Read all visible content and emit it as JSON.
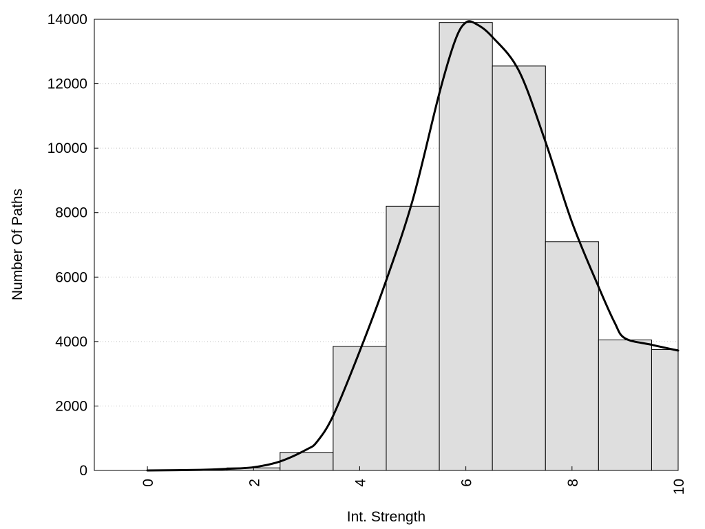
{
  "chart_data": {
    "type": "bar",
    "xlabel": "Int. Strength",
    "ylabel": "Number Of Paths",
    "xlim": [
      -1,
      10
    ],
    "ylim": [
      0,
      14000
    ],
    "xticks": [
      0,
      2,
      4,
      6,
      8,
      10
    ],
    "yticks": [
      0,
      2000,
      4000,
      6000,
      8000,
      10000,
      12000,
      14000
    ],
    "grid": "horizontal dotted",
    "bin_width": 1,
    "bars": [
      {
        "x": 0,
        "value": 0
      },
      {
        "x": 1,
        "value": 0
      },
      {
        "x": 2,
        "value": 80
      },
      {
        "x": 3,
        "value": 560
      },
      {
        "x": 4,
        "value": 3850
      },
      {
        "x": 5,
        "value": 8200
      },
      {
        "x": 6,
        "value": 13900
      },
      {
        "x": 7,
        "value": 12550
      },
      {
        "x": 8,
        "value": 7100
      },
      {
        "x": 9,
        "value": 4050
      },
      {
        "x": 10,
        "value": 3750
      }
    ],
    "curve": {
      "x": [
        0,
        1,
        1.5,
        2,
        2.5,
        3,
        3.2,
        3.5,
        4,
        4.5,
        5,
        5.5,
        5.8,
        6,
        6.2,
        6.5,
        7,
        7.5,
        8,
        8.5,
        8.8,
        9,
        9.5,
        10
      ],
      "y": [
        0,
        20,
        50,
        100,
        280,
        650,
        900,
        1700,
        3700,
        5900,
        8400,
        11700,
        13350,
        13900,
        13850,
        13450,
        12400,
        10200,
        7700,
        5700,
        4600,
        4100,
        3900,
        3720
      ]
    }
  }
}
